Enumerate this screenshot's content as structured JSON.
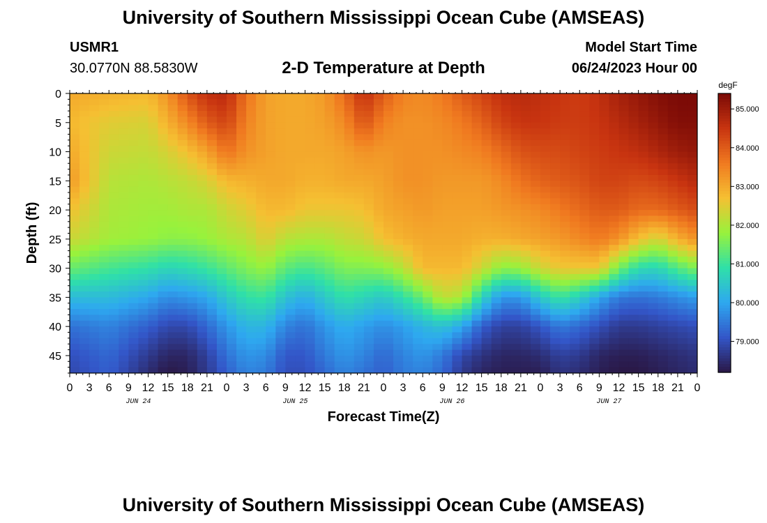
{
  "header": {
    "title": "University of Southern Mississippi Ocean Cube (AMSEAS)",
    "station_id": "USMR1",
    "coordinates": "30.0770N  88.5830W",
    "plot_label": "2-D Temperature at Depth",
    "model_start_label": "Model Start Time",
    "model_start_value": "06/24/2023 Hour 00"
  },
  "footer": {
    "title": "University of Southern Mississippi Ocean Cube (AMSEAS)"
  },
  "colorbar": {
    "unit": "degF",
    "range": [
      78.2,
      85.4
    ],
    "ticks": [
      79,
      80,
      81,
      82,
      83,
      84,
      85
    ],
    "tick_labels": [
      "79.000",
      "80.000",
      "81.000",
      "82.000",
      "83.000",
      "84.000",
      "85.000"
    ],
    "colors": [
      "#2a1846",
      "#3356c8",
      "#2ea8f0",
      "#2fe0a8",
      "#98f23c",
      "#f5c032",
      "#f07a20",
      "#c83410",
      "#7a0a06"
    ]
  },
  "chart_data": {
    "type": "heatmap",
    "title": "2-D Temperature at Depth",
    "xlabel": "Forecast Time(Z)",
    "ylabel": "Depth (ft)",
    "x_hours_range": [
      0,
      96
    ],
    "x_tick_labels": [
      "0",
      "3",
      "6",
      "9",
      "12",
      "15",
      "18",
      "21",
      "0",
      "3",
      "6",
      "9",
      "12",
      "15",
      "18",
      "21",
      "0",
      "3",
      "6",
      "9",
      "12",
      "15",
      "18",
      "21",
      "0",
      "3",
      "6",
      "9",
      "12",
      "15",
      "18",
      "21",
      "0"
    ],
    "date_labels": [
      {
        "label": "JUN 24",
        "hour": 10.5
      },
      {
        "label": "JUN 25",
        "hour": 34.5
      },
      {
        "label": "JUN 26",
        "hour": 58.5
      },
      {
        "label": "JUN 27",
        "hour": 82.5
      }
    ],
    "y_range_ft": [
      0,
      48
    ],
    "y_ticks": [
      0,
      5,
      10,
      15,
      20,
      25,
      30,
      35,
      40,
      45
    ],
    "units": "degF",
    "hours": [
      0,
      6,
      12,
      15,
      18,
      21,
      24,
      27,
      30,
      33,
      36,
      39,
      42,
      45,
      48,
      51,
      54,
      57,
      60,
      63,
      66,
      69,
      72,
      75,
      78,
      81,
      84,
      87,
      90,
      93,
      96
    ],
    "depths": [
      0,
      5,
      10,
      15,
      20,
      25,
      30,
      35,
      40,
      45,
      48
    ],
    "values": [
      [
        83.0,
        82.8,
        83.0,
        83.2,
        82.7,
        82.3,
        81.4,
        80.3,
        79.4,
        79.0,
        78.9
      ],
      [
        82.9,
        82.5,
        82.3,
        82.1,
        82.0,
        81.9,
        81.1,
        80.3,
        79.6,
        79.3,
        79.2
      ],
      [
        82.8,
        82.4,
        82.2,
        82.0,
        81.9,
        81.8,
        80.9,
        80.0,
        79.2,
        78.7,
        78.5
      ],
      [
        83.3,
        82.9,
        82.4,
        82.1,
        81.9,
        81.7,
        80.7,
        79.7,
        78.9,
        78.4,
        78.2
      ],
      [
        84.1,
        83.4,
        82.7,
        82.2,
        82.0,
        81.7,
        80.8,
        79.8,
        78.9,
        78.4,
        78.3
      ],
      [
        84.6,
        84.0,
        83.1,
        82.4,
        82.0,
        81.8,
        81.0,
        80.0,
        79.3,
        78.8,
        78.7
      ],
      [
        84.7,
        84.3,
        83.7,
        82.8,
        82.3,
        82.0,
        81.3,
        80.5,
        79.8,
        79.4,
        79.2
      ],
      [
        83.7,
        83.5,
        83.3,
        82.9,
        82.5,
        82.1,
        81.6,
        80.9,
        80.2,
        79.8,
        79.6
      ],
      [
        83.1,
        83.1,
        83.1,
        83.0,
        82.8,
        82.5,
        81.8,
        81.0,
        80.2,
        79.7,
        79.5
      ],
      [
        83.0,
        83.0,
        83.0,
        83.0,
        82.8,
        82.1,
        81.3,
        80.4,
        79.6,
        79.1,
        79.0
      ],
      [
        83.0,
        83.0,
        83.0,
        82.9,
        82.6,
        82.0,
        81.1,
        80.1,
        79.4,
        79.1,
        79.0
      ],
      [
        83.2,
        83.1,
        83.0,
        82.9,
        82.6,
        82.0,
        81.3,
        80.5,
        79.8,
        79.5,
        79.3
      ],
      [
        83.8,
        83.4,
        83.1,
        83.0,
        82.6,
        82.2,
        81.6,
        80.9,
        80.1,
        79.8,
        79.6
      ],
      [
        84.6,
        84.1,
        83.3,
        83.0,
        82.7,
        82.3,
        81.6,
        80.7,
        79.9,
        79.6,
        79.4
      ],
      [
        84.0,
        83.5,
        83.2,
        83.1,
        83.0,
        82.7,
        81.7,
        80.5,
        79.7,
        79.3,
        79.2
      ],
      [
        83.5,
        83.3,
        83.3,
        83.3,
        83.1,
        82.9,
        82.1,
        80.9,
        79.9,
        79.6,
        79.5
      ],
      [
        83.4,
        83.3,
        83.3,
        83.3,
        83.2,
        83.0,
        82.8,
        81.4,
        80.2,
        79.8,
        79.6
      ],
      [
        83.6,
        83.4,
        83.3,
        83.2,
        83.1,
        83.0,
        82.8,
        82.2,
        80.4,
        79.5,
        79.3
      ],
      [
        84.0,
        83.6,
        83.4,
        83.2,
        83.1,
        83.0,
        82.8,
        82.0,
        80.0,
        78.9,
        78.7
      ],
      [
        84.3,
        83.9,
        83.5,
        83.2,
        83.1,
        82.9,
        82.3,
        80.7,
        79.2,
        78.6,
        78.4
      ],
      [
        84.6,
        84.3,
        83.8,
        83.4,
        83.2,
        82.9,
        81.7,
        79.8,
        78.8,
        78.4,
        78.3
      ],
      [
        84.7,
        84.5,
        84.1,
        83.7,
        83.3,
        83.0,
        81.8,
        79.8,
        78.8,
        78.4,
        78.3
      ],
      [
        84.6,
        84.5,
        84.2,
        83.9,
        83.4,
        83.1,
        82.3,
        80.5,
        79.1,
        78.5,
        78.3
      ],
      [
        84.5,
        84.4,
        84.2,
        84.0,
        83.6,
        83.2,
        82.6,
        81.0,
        79.5,
        78.8,
        78.6
      ],
      [
        84.4,
        84.4,
        84.3,
        84.1,
        83.8,
        83.4,
        82.6,
        80.6,
        79.3,
        78.7,
        78.5
      ],
      [
        84.6,
        84.5,
        84.4,
        84.3,
        84.0,
        83.6,
        82.6,
        80.0,
        79.0,
        78.4,
        78.3
      ],
      [
        84.9,
        84.7,
        84.5,
        84.3,
        84.0,
        83.3,
        81.5,
        79.5,
        78.7,
        78.3,
        78.2
      ],
      [
        85.1,
        84.9,
        84.6,
        84.2,
        83.8,
        82.7,
        80.8,
        79.4,
        78.7,
        78.3,
        78.2
      ],
      [
        85.3,
        85.1,
        84.8,
        84.3,
        83.8,
        82.3,
        80.7,
        79.5,
        78.8,
        78.4,
        78.3
      ],
      [
        85.4,
        85.3,
        85.0,
        84.5,
        84.0,
        82.9,
        81.2,
        79.7,
        78.9,
        78.5,
        78.4
      ],
      [
        85.4,
        85.3,
        85.1,
        84.7,
        84.2,
        83.3,
        81.6,
        79.9,
        79.0,
        78.6,
        78.5
      ]
    ]
  }
}
